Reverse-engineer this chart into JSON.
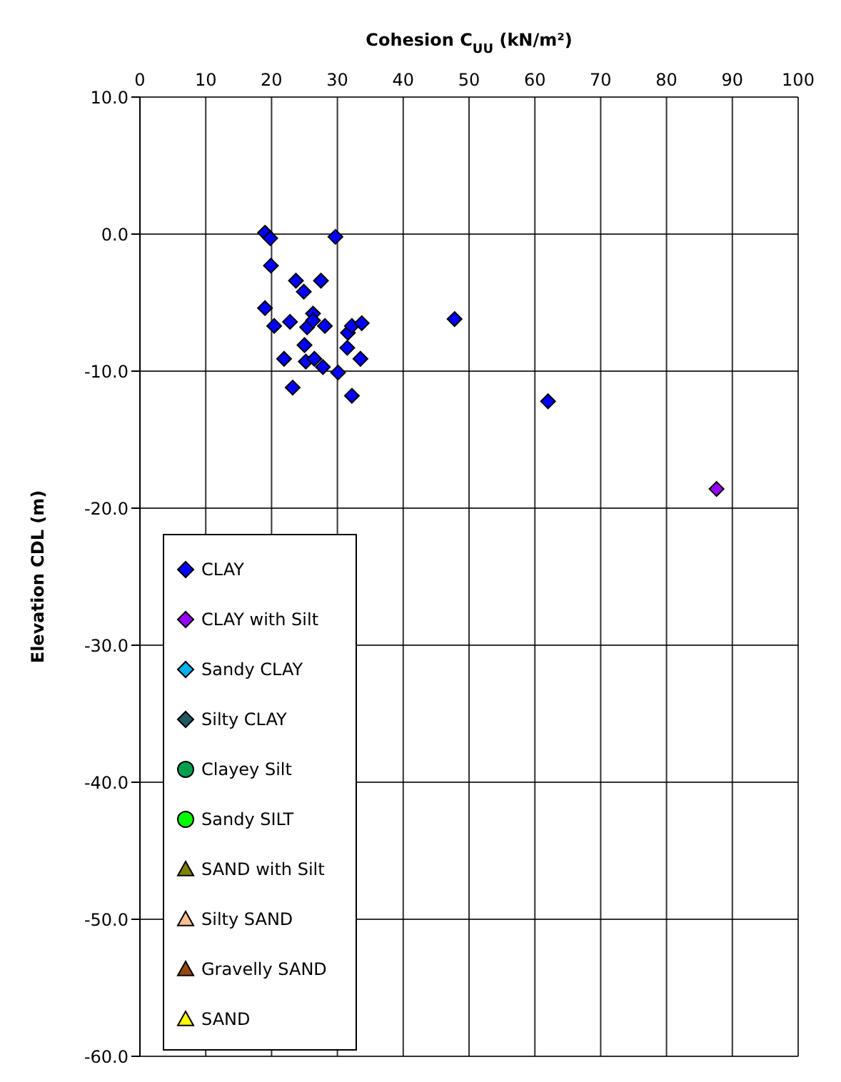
{
  "chart_data": {
    "type": "scatter",
    "xlabel": "Cohesion  C$_{UU}$ (kN/m²)",
    "ylabel": "Elevation CDL (m)",
    "xlim": [
      0,
      100
    ],
    "xticks": [
      0,
      10,
      20,
      30,
      40,
      50,
      60,
      70,
      80,
      90,
      100
    ],
    "ylim": [
      -60,
      10
    ],
    "yticks": [
      {
        "value": 10,
        "label": "10.0"
      },
      {
        "value": 0,
        "label": "0.0"
      },
      {
        "value": -10,
        "label": "-10.0"
      },
      {
        "value": -20,
        "label": "-20.0"
      },
      {
        "value": -30,
        "label": "-30.0"
      },
      {
        "value": -40,
        "label": "-40.0"
      },
      {
        "value": -50,
        "label": "-50.0"
      },
      {
        "value": -60,
        "label": "-60.0"
      }
    ],
    "grid": true,
    "legend": "bottom left",
    "series": [
      {
        "name": "CLAY",
        "color": "#0000ff",
        "marker": "diamond",
        "x": [
          19,
          19.8,
          29.7,
          19.9,
          23.7,
          27.5,
          24.9,
          19,
          20.4,
          22.8,
          25.4,
          26.3,
          26.3,
          28.1,
          31.6,
          32.2,
          33.7,
          47.8,
          25,
          31.5,
          21.9,
          25.2,
          26.5,
          27.8,
          33.5,
          30.1,
          23.2,
          32.2,
          62
        ],
        "values": [
          0.1,
          -0.3,
          -0.2,
          -2.3,
          -3.4,
          -3.4,
          -4.2,
          -5.4,
          -6.7,
          -6.4,
          -6.8,
          -5.8,
          -6.3,
          -6.7,
          -7.2,
          -6.7,
          -6.5,
          -6.2,
          -8.1,
          -8.3,
          -9.1,
          -9.3,
          -9.1,
          -9.7,
          -9.1,
          -10.1,
          -11.2,
          -11.8,
          -12.2
        ]
      },
      {
        "name": "CLAY with Silt",
        "color": "#9900ff",
        "marker": "diamond",
        "x": [
          87.6
        ],
        "values": [
          -18.6
        ]
      },
      {
        "name": "Sandy CLAY",
        "color": "#00b0f0",
        "marker": "diamond"
      },
      {
        "name": "Silty CLAY",
        "color": "#215967",
        "marker": "diamond"
      },
      {
        "name": "Clayey Silt",
        "color": "#00a050",
        "marker": "circle"
      },
      {
        "name": "Sandy SILT",
        "color": "#00ff00",
        "marker": "circle"
      },
      {
        "name": "SAND with Silt",
        "color": "#808000",
        "marker": "triangle"
      },
      {
        "name": "Silty SAND",
        "color": "#fac090",
        "marker": "triangle"
      },
      {
        "name": "Gravelly SAND",
        "color": "#984807",
        "marker": "triangle"
      },
      {
        "name": "SAND",
        "color": "#ffff00",
        "marker": "triangle"
      }
    ]
  }
}
